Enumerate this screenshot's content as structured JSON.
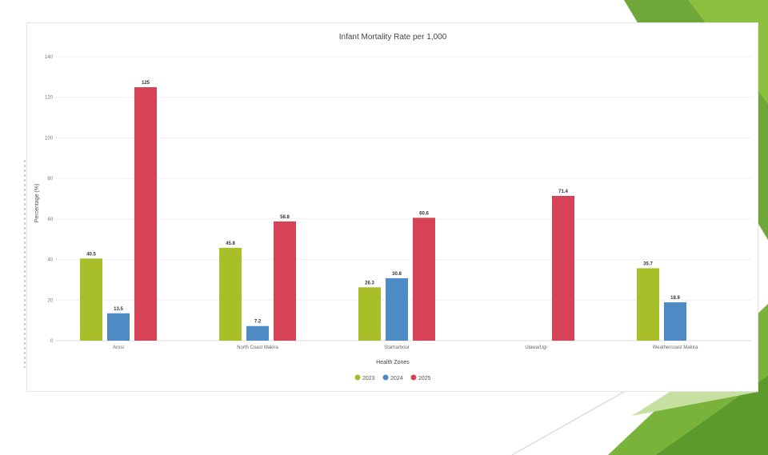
{
  "chart_data": {
    "type": "bar",
    "title": "Infant Mortality Rate per 1,000",
    "xlabel": "Health Zones",
    "ylabel": "Percentage (%)",
    "ylim": [
      0,
      140
    ],
    "yticks": [
      "0",
      "20",
      "40",
      "60",
      "80",
      "100",
      "120",
      "140"
    ],
    "grid": true,
    "legend_position": "bottom",
    "categories": [
      "Arosi",
      "North Coast Makira",
      "Starharbour",
      "Ulawa/Ugi",
      "Weathercoast Makira"
    ],
    "series": [
      {
        "name": "2023",
        "color": "#a8bf2a",
        "values": [
          40.5,
          45.8,
          26.3,
          null,
          35.7
        ],
        "labels": [
          "40.5",
          "45.8",
          "26.3",
          null,
          "35.7"
        ]
      },
      {
        "name": "2024",
        "color": "#4e8ac4",
        "values": [
          13.5,
          7.2,
          30.8,
          null,
          18.9
        ],
        "labels": [
          "13.5",
          "7.2",
          "30.8",
          null,
          "18.9"
        ]
      },
      {
        "name": "2025",
        "color": "#d64356",
        "values": [
          125,
          58.8,
          60.6,
          71.4,
          null
        ],
        "labels": [
          "125",
          "58.8",
          "60.6",
          "71.4",
          null
        ]
      }
    ]
  }
}
